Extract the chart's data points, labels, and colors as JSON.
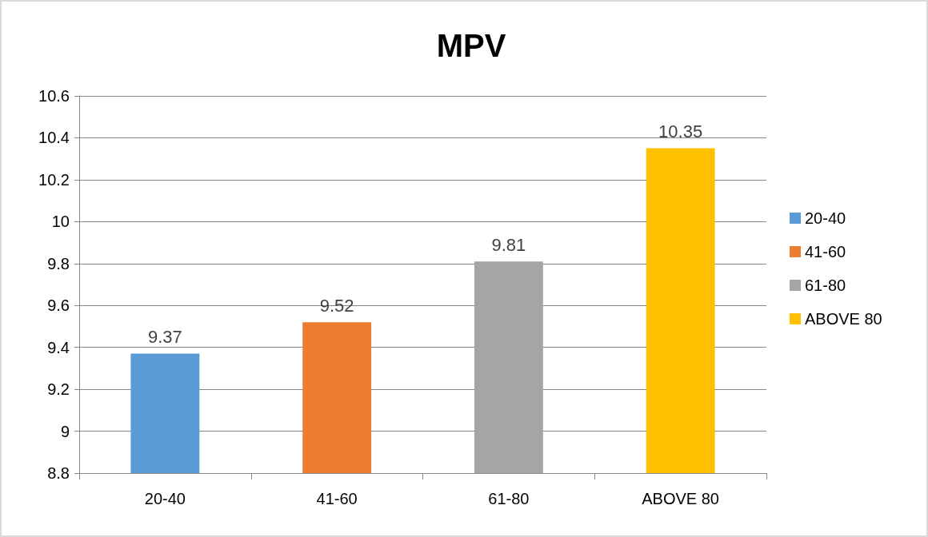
{
  "chart_data": {
    "type": "bar",
    "title": "MPV",
    "categories": [
      "20-40",
      "41-60",
      "61-80",
      "ABOVE 80"
    ],
    "series": [
      {
        "name": "20-40",
        "color": "#5b9bd5",
        "values": [
          9.37,
          null,
          null,
          null
        ]
      },
      {
        "name": "41-60",
        "color": "#ed7d31",
        "values": [
          null,
          9.52,
          null,
          null
        ]
      },
      {
        "name": "61-80",
        "color": "#a5a5a5",
        "values": [
          null,
          null,
          9.81,
          null
        ]
      },
      {
        "name": "ABOVE 80",
        "color": "#ffc000",
        "values": [
          null,
          null,
          null,
          10.35
        ]
      }
    ],
    "ylim": [
      8.8,
      10.6
    ],
    "yticks": [
      8.8,
      9,
      9.2,
      9.4,
      9.6,
      9.8,
      10,
      10.2,
      10.4,
      10.6
    ],
    "grid": "y",
    "data_labels": true,
    "legend": "right"
  }
}
